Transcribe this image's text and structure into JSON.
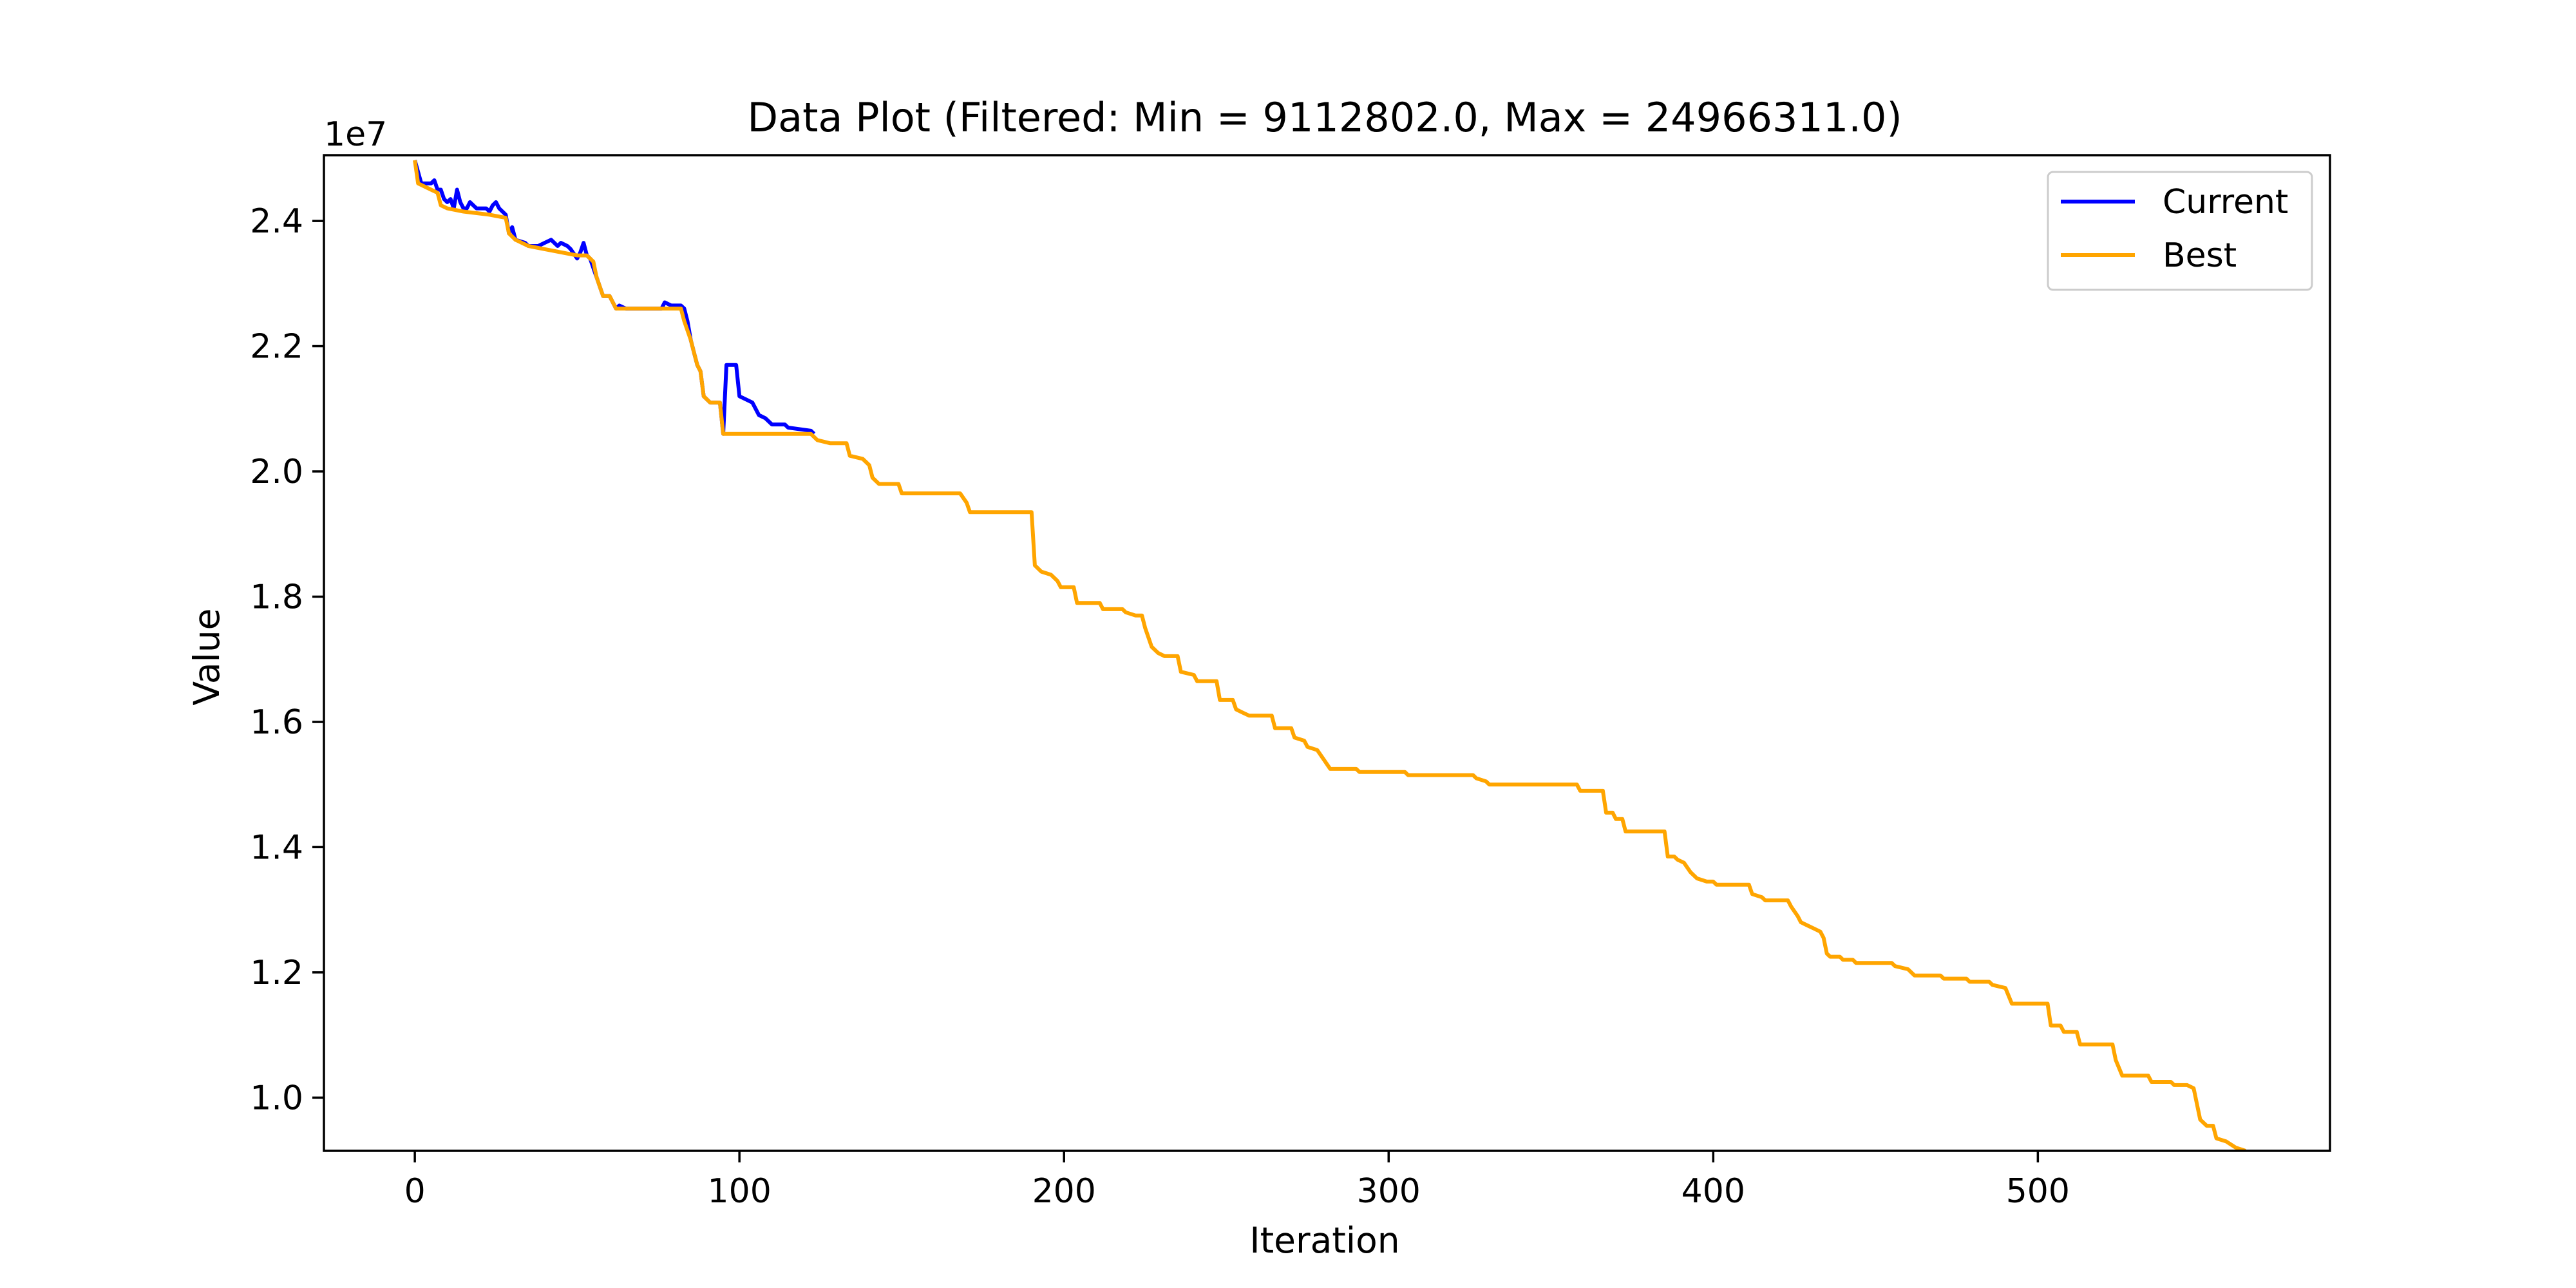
{
  "chart_data": {
    "type": "line",
    "title": "Data Plot (Filtered: Min = 9112802.0, Max = 24966311.0)",
    "xlabel": "Iteration",
    "ylabel": "Value",
    "y_offset_label": "1e7",
    "xlim": [
      -28,
      590
    ],
    "ylim": [
      9.15,
      25.05
    ],
    "y_scale": 10000000,
    "x_ticks": [
      0,
      100,
      200,
      300,
      400,
      500
    ],
    "y_ticks": [
      10,
      12,
      14,
      16,
      18,
      20,
      22,
      24
    ],
    "y_tick_labels": [
      "1.0",
      "1.2",
      "1.4",
      "1.6",
      "1.8",
      "2.0",
      "2.2",
      "2.4"
    ],
    "grid": false,
    "legend_position": "top-right",
    "series": [
      {
        "name": "Current",
        "color": "#0000ff",
        "points": [
          [
            0,
            24.97
          ],
          [
            2,
            24.6
          ],
          [
            5,
            24.6
          ],
          [
            6,
            24.65
          ],
          [
            7,
            24.5
          ],
          [
            8,
            24.5
          ],
          [
            9,
            24.35
          ],
          [
            10,
            24.3
          ],
          [
            11,
            24.35
          ],
          [
            12,
            24.2
          ],
          [
            13,
            24.5
          ],
          [
            14,
            24.3
          ],
          [
            15,
            24.2
          ],
          [
            16,
            24.2
          ],
          [
            17,
            24.3
          ],
          [
            18,
            24.25
          ],
          [
            19,
            24.2
          ],
          [
            22,
            24.2
          ],
          [
            23,
            24.15
          ],
          [
            24,
            24.25
          ],
          [
            25,
            24.3
          ],
          [
            26,
            24.2
          ],
          [
            28,
            24.1
          ],
          [
            29,
            23.8
          ],
          [
            30,
            23.9
          ],
          [
            31,
            23.7
          ],
          [
            34,
            23.65
          ],
          [
            35,
            23.6
          ],
          [
            38,
            23.6
          ],
          [
            40,
            23.65
          ],
          [
            42,
            23.7
          ],
          [
            44,
            23.6
          ],
          [
            45,
            23.65
          ],
          [
            47,
            23.6
          ],
          [
            48,
            23.55
          ],
          [
            50,
            23.4
          ],
          [
            51,
            23.5
          ],
          [
            52,
            23.65
          ],
          [
            53,
            23.45
          ],
          [
            54,
            23.4
          ],
          [
            56,
            23.1
          ],
          [
            58,
            22.8
          ],
          [
            60,
            22.8
          ],
          [
            62,
            22.6
          ],
          [
            63,
            22.65
          ],
          [
            65,
            22.6
          ],
          [
            76,
            22.6
          ],
          [
            77,
            22.7
          ],
          [
            79,
            22.65
          ],
          [
            82,
            22.65
          ],
          [
            83,
            22.6
          ],
          [
            84,
            22.4
          ],
          [
            85,
            22.1
          ],
          [
            86,
            21.9
          ],
          [
            87,
            21.7
          ],
          [
            88,
            21.6
          ],
          [
            89,
            21.2
          ],
          [
            91,
            21.1
          ],
          [
            94,
            21.1
          ],
          [
            95,
            20.6
          ],
          [
            96,
            21.7
          ],
          [
            99,
            21.7
          ],
          [
            100,
            21.2
          ],
          [
            102,
            21.15
          ],
          [
            104,
            21.1
          ],
          [
            106,
            20.9
          ],
          [
            108,
            20.85
          ],
          [
            110,
            20.75
          ],
          [
            114,
            20.75
          ],
          [
            115,
            20.7
          ],
          [
            122,
            20.65
          ],
          [
            123,
            20.6
          ]
        ]
      },
      {
        "name": "Best",
        "color": "#ffa500",
        "points": [
          [
            0,
            24.97
          ],
          [
            1,
            24.6
          ],
          [
            5,
            24.5
          ],
          [
            7,
            24.45
          ],
          [
            8,
            24.25
          ],
          [
            10,
            24.2
          ],
          [
            15,
            24.15
          ],
          [
            23,
            24.1
          ],
          [
            28,
            24.05
          ],
          [
            29,
            23.8
          ],
          [
            31,
            23.7
          ],
          [
            35,
            23.6
          ],
          [
            50,
            23.45
          ],
          [
            53,
            23.45
          ],
          [
            55,
            23.35
          ],
          [
            56,
            23.1
          ],
          [
            58,
            22.8
          ],
          [
            60,
            22.8
          ],
          [
            62,
            22.6
          ],
          [
            82,
            22.6
          ],
          [
            83,
            22.4
          ],
          [
            85,
            22.1
          ],
          [
            86,
            21.9
          ],
          [
            87,
            21.7
          ],
          [
            88,
            21.6
          ],
          [
            89,
            21.2
          ],
          [
            91,
            21.1
          ],
          [
            94,
            21.1
          ],
          [
            95,
            20.6
          ],
          [
            122,
            20.6
          ],
          [
            123,
            20.55
          ],
          [
            124,
            20.5
          ],
          [
            128,
            20.45
          ],
          [
            133,
            20.45
          ],
          [
            134,
            20.25
          ],
          [
            138,
            20.2
          ],
          [
            140,
            20.1
          ],
          [
            141,
            19.9
          ],
          [
            143,
            19.8
          ],
          [
            149,
            19.8
          ],
          [
            150,
            19.65
          ],
          [
            168,
            19.65
          ],
          [
            170,
            19.5
          ],
          [
            171,
            19.35
          ],
          [
            190,
            19.35
          ],
          [
            191,
            18.5
          ],
          [
            193,
            18.4
          ],
          [
            196,
            18.35
          ],
          [
            198,
            18.25
          ],
          [
            199,
            18.15
          ],
          [
            203,
            18.15
          ],
          [
            204,
            17.9
          ],
          [
            211,
            17.9
          ],
          [
            212,
            17.8
          ],
          [
            218,
            17.8
          ],
          [
            219,
            17.75
          ],
          [
            222,
            17.7
          ],
          [
            224,
            17.7
          ],
          [
            225,
            17.5
          ],
          [
            227,
            17.2
          ],
          [
            229,
            17.1
          ],
          [
            231,
            17.05
          ],
          [
            235,
            17.05
          ],
          [
            236,
            16.8
          ],
          [
            240,
            16.75
          ],
          [
            241,
            16.65
          ],
          [
            247,
            16.65
          ],
          [
            248,
            16.35
          ],
          [
            252,
            16.35
          ],
          [
            253,
            16.2
          ],
          [
            255,
            16.15
          ],
          [
            257,
            16.1
          ],
          [
            264,
            16.1
          ],
          [
            265,
            15.9
          ],
          [
            270,
            15.9
          ],
          [
            271,
            15.75
          ],
          [
            274,
            15.7
          ],
          [
            275,
            15.6
          ],
          [
            278,
            15.55
          ],
          [
            280,
            15.4
          ],
          [
            282,
            15.25
          ],
          [
            290,
            15.25
          ],
          [
            291,
            15.2
          ],
          [
            305,
            15.2
          ],
          [
            306,
            15.15
          ],
          [
            326,
            15.15
          ],
          [
            327,
            15.1
          ],
          [
            330,
            15.05
          ],
          [
            331,
            15.0
          ],
          [
            358,
            15.0
          ],
          [
            359,
            14.9
          ],
          [
            366,
            14.9
          ],
          [
            367,
            14.55
          ],
          [
            369,
            14.55
          ],
          [
            370,
            14.45
          ],
          [
            372,
            14.45
          ],
          [
            373,
            14.25
          ],
          [
            385,
            14.25
          ],
          [
            386,
            13.85
          ],
          [
            388,
            13.85
          ],
          [
            389,
            13.8
          ],
          [
            391,
            13.75
          ],
          [
            393,
            13.6
          ],
          [
            395,
            13.5
          ],
          [
            398,
            13.45
          ],
          [
            400,
            13.45
          ],
          [
            401,
            13.4
          ],
          [
            411,
            13.4
          ],
          [
            412,
            13.25
          ],
          [
            415,
            13.2
          ],
          [
            416,
            13.15
          ],
          [
            423,
            13.15
          ],
          [
            424,
            13.05
          ],
          [
            426,
            12.9
          ],
          [
            427,
            12.8
          ],
          [
            429,
            12.75
          ],
          [
            431,
            12.7
          ],
          [
            433,
            12.65
          ],
          [
            434,
            12.55
          ],
          [
            435,
            12.3
          ],
          [
            436,
            12.25
          ],
          [
            439,
            12.25
          ],
          [
            440,
            12.2
          ],
          [
            443,
            12.2
          ],
          [
            444,
            12.15
          ],
          [
            455,
            12.15
          ],
          [
            456,
            12.1
          ],
          [
            460,
            12.05
          ],
          [
            462,
            11.95
          ],
          [
            470,
            11.95
          ],
          [
            471,
            11.9
          ],
          [
            478,
            11.9
          ],
          [
            479,
            11.85
          ],
          [
            485,
            11.85
          ],
          [
            486,
            11.8
          ],
          [
            490,
            11.75
          ],
          [
            492,
            11.5
          ],
          [
            503,
            11.5
          ],
          [
            504,
            11.15
          ],
          [
            507,
            11.15
          ],
          [
            508,
            11.05
          ],
          [
            512,
            11.05
          ],
          [
            513,
            10.85
          ],
          [
            523,
            10.85
          ],
          [
            524,
            10.6
          ],
          [
            526,
            10.35
          ],
          [
            534,
            10.35
          ],
          [
            535,
            10.25
          ],
          [
            541,
            10.25
          ],
          [
            542,
            10.2
          ],
          [
            546,
            10.2
          ],
          [
            548,
            10.15
          ],
          [
            550,
            9.65
          ],
          [
            552,
            9.55
          ],
          [
            554,
            9.55
          ],
          [
            555,
            9.35
          ],
          [
            558,
            9.3
          ],
          [
            561,
            9.2
          ],
          [
            564,
            9.15
          ]
        ]
      }
    ]
  }
}
